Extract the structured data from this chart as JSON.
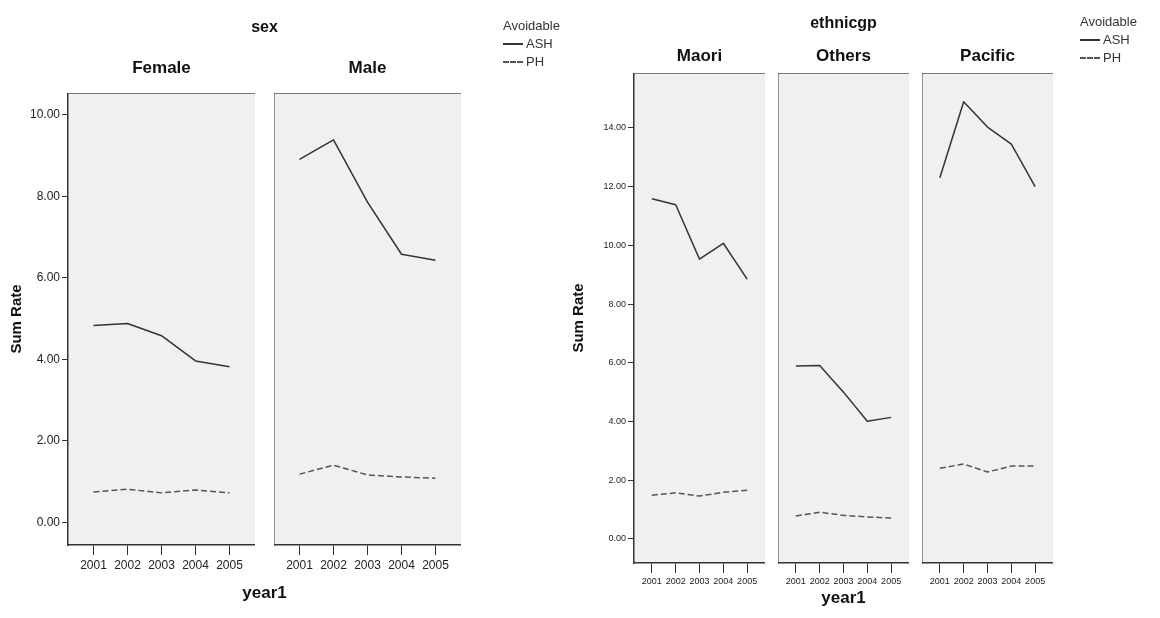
{
  "chart_data": [
    {
      "type": "line",
      "title": "Female",
      "annotations": [
        "sex"
      ],
      "xlabel": "year1",
      "ylabel": "Sum Rate",
      "x": [
        2001,
        2002,
        2003,
        2004,
        2005
      ],
      "xlim": [
        2000.25,
        2005.75
      ],
      "xticks": [
        2001,
        2002,
        2003,
        2004,
        2005
      ],
      "ylim": [
        -0.56,
        10.54
      ],
      "yticks": [
        {
          "value": 0,
          "label": "0.00"
        },
        {
          "value": 2,
          "label": "2.00"
        },
        {
          "value": 4,
          "label": "4.00"
        },
        {
          "value": 6,
          "label": "6.00"
        },
        {
          "value": 8,
          "label": "8.00"
        },
        {
          "value": 10,
          "label": "10.00"
        }
      ],
      "marker": "none",
      "series": [
        {
          "color": "#333333",
          "line_style": "solid",
          "values": [
            4.83,
            4.88,
            4.58,
            3.96,
            3.82
          ]
        },
        {
          "color": "#555555",
          "line_style": "dashed",
          "values": [
            0.74,
            0.81,
            0.72,
            0.79,
            0.72
          ]
        }
      ]
    },
    {
      "type": "line",
      "title": "Male",
      "x": [
        2001,
        2002,
        2003,
        2004,
        2005
      ],
      "xlim": [
        2000.25,
        2005.75
      ],
      "xticks": [
        2001,
        2002,
        2003,
        2004,
        2005
      ],
      "ylim": [
        -0.56,
        10.54
      ],
      "tick_labels": "x",
      "marker": "none",
      "legend": "right",
      "legend_title": "Avoidable",
      "series": [
        {
          "name": "ASH",
          "color": "#333333",
          "line_style": "solid",
          "values": [
            8.91,
            9.39,
            7.86,
            6.58,
            6.43
          ]
        },
        {
          "name": "PH",
          "color": "#555555",
          "line_style": "dashed",
          "values": [
            1.18,
            1.4,
            1.16,
            1.11,
            1.08
          ]
        }
      ]
    },
    {
      "type": "line",
      "title": "Maori",
      "annotations": [
        "ethnicgp"
      ],
      "xlabel": "year1",
      "ylabel": "Sum Rate",
      "x": [
        2001,
        2002,
        2003,
        2004,
        2005
      ],
      "xlim": [
        2000.25,
        2005.75
      ],
      "xticks": [
        2001,
        2002,
        2003,
        2004,
        2005
      ],
      "ylim": [
        -0.82,
        15.87
      ],
      "yticks": [
        {
          "value": 0,
          "label": "0.00"
        },
        {
          "value": 2,
          "label": "2.00"
        },
        {
          "value": 4,
          "label": "4.00"
        },
        {
          "value": 6,
          "label": "6.00"
        },
        {
          "value": 8,
          "label": "8.00"
        },
        {
          "value": 10,
          "label": "10.00"
        },
        {
          "value": 12,
          "label": "12.00"
        },
        {
          "value": 14,
          "label": "14.00"
        }
      ],
      "marker": "none",
      "series": [
        {
          "color": "#333333",
          "line_style": "solid",
          "values": [
            11.59,
            11.38,
            9.53,
            10.07,
            8.85
          ]
        },
        {
          "color": "#555555",
          "line_style": "dashed",
          "values": [
            1.49,
            1.57,
            1.46,
            1.59,
            1.66
          ]
        }
      ]
    },
    {
      "type": "line",
      "title": "Others",
      "x": [
        2001,
        2002,
        2003,
        2004,
        2005
      ],
      "xlim": [
        2000.25,
        2005.75
      ],
      "xticks": [
        2001,
        2002,
        2003,
        2004,
        2005
      ],
      "ylim": [
        -0.82,
        15.87
      ],
      "tick_labels": "x",
      "marker": "none",
      "series": [
        {
          "color": "#333333",
          "line_style": "solid",
          "values": [
            5.89,
            5.91,
            5.0,
            4.01,
            4.14
          ]
        },
        {
          "color": "#555555",
          "line_style": "dashed",
          "values": [
            0.78,
            0.91,
            0.8,
            0.75,
            0.71
          ]
        }
      ]
    },
    {
      "type": "line",
      "title": "Pacific",
      "x": [
        2001,
        2002,
        2003,
        2004,
        2005
      ],
      "xlim": [
        2000.25,
        2005.75
      ],
      "xticks": [
        2001,
        2002,
        2003,
        2004,
        2005
      ],
      "ylim": [
        -0.82,
        15.87
      ],
      "tick_labels": "x",
      "marker": "none",
      "legend": "right",
      "legend_title": "Avoidable",
      "series": [
        {
          "name": "ASH",
          "color": "#333333",
          "line_style": "solid",
          "values": [
            12.3,
            14.89,
            14.03,
            13.45,
            12.0
          ]
        },
        {
          "name": "PH",
          "color": "#555555",
          "line_style": "dashed",
          "values": [
            2.41,
            2.55,
            2.28,
            2.48,
            2.48
          ]
        }
      ]
    }
  ]
}
